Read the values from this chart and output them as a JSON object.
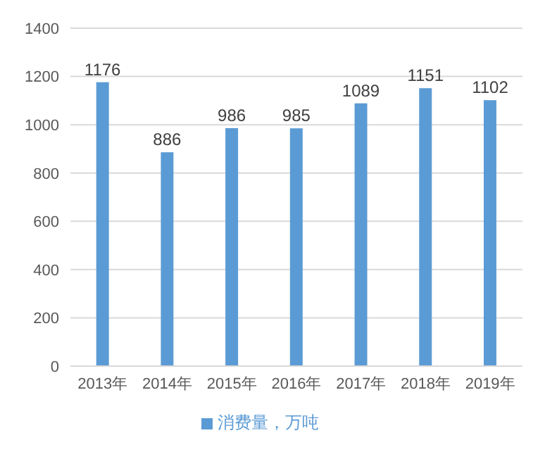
{
  "chart_data": {
    "type": "bar",
    "categories": [
      "2013年",
      "2014年",
      "2015年",
      "2016年",
      "2017年",
      "2018年",
      "2019年"
    ],
    "series": [
      {
        "name": "消费量，万吨",
        "color": "#5b9bd5",
        "values": [
          1176,
          886,
          986,
          985,
          1089,
          1151,
          1102
        ]
      }
    ],
    "ylim": [
      0,
      1400
    ],
    "yticks": [
      0,
      200,
      400,
      600,
      800,
      1000,
      1200,
      1400
    ],
    "grid": "y",
    "legend": "bottom",
    "data_labels": true
  }
}
